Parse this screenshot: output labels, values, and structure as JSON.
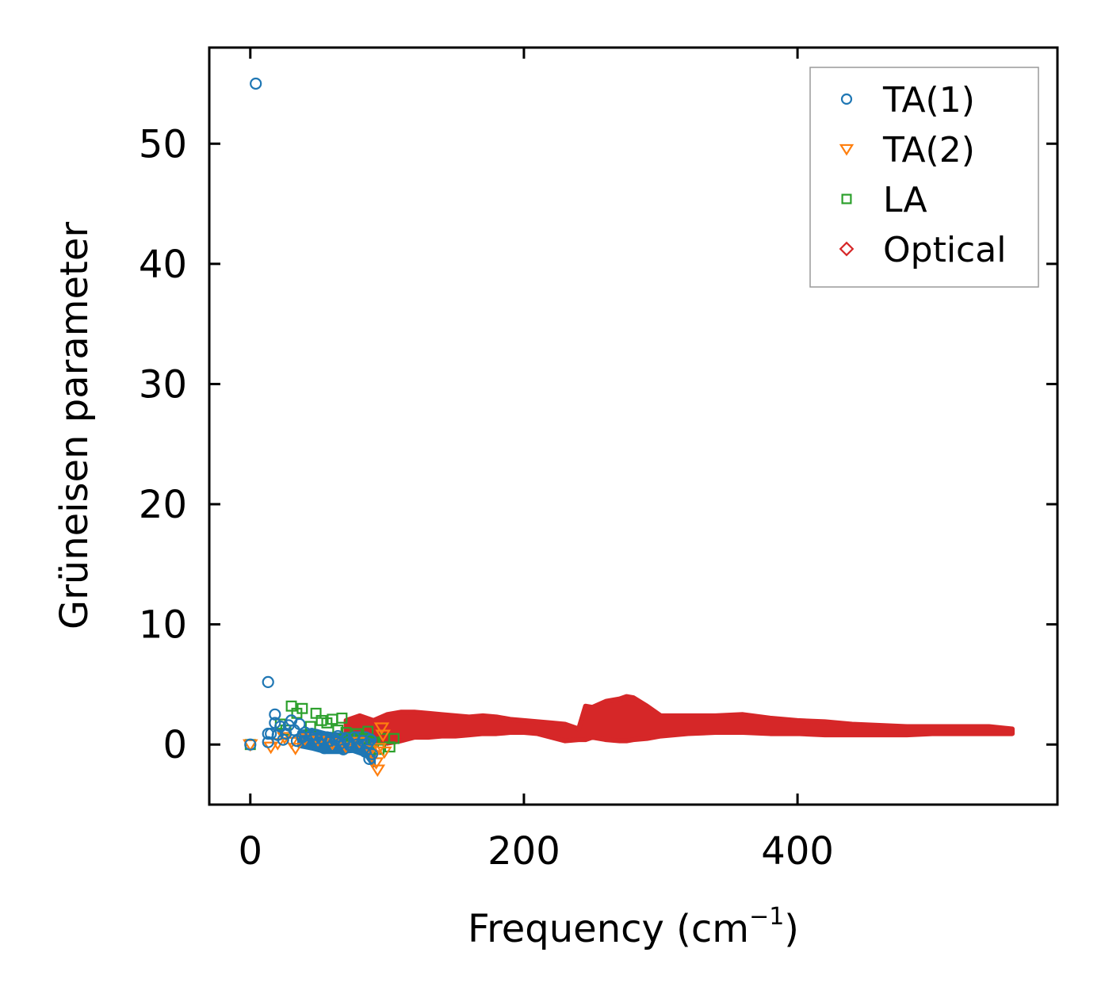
{
  "chart_data": {
    "type": "scatter",
    "xlabel": "Frequency (cm",
    "xlabel_sup": "−1",
    "xlabel_close": ")",
    "ylabel": "Grüneisen parameter",
    "xlim": [
      -30,
      590
    ],
    "ylim": [
      -5,
      58
    ],
    "xticks": [
      0,
      200,
      400
    ],
    "yticks": [
      0,
      10,
      20,
      30,
      40,
      50
    ],
    "xtick_labels": [
      "0",
      "200",
      "400"
    ],
    "ytick_labels": [
      "0",
      "10",
      "20",
      "30",
      "40",
      "50"
    ],
    "legend_position": "top-right",
    "series": [
      {
        "name": "TA(1)",
        "marker": "circle",
        "color": "#1f77b4",
        "points": [
          [
            4,
            55.0
          ],
          [
            13,
            5.2
          ],
          [
            0,
            0.0
          ],
          [
            13,
            0.9
          ],
          [
            13,
            0.2
          ],
          [
            15,
            0.9
          ],
          [
            18,
            2.5
          ],
          [
            18,
            1.8
          ],
          [
            20,
            0.8
          ],
          [
            22,
            1.5
          ],
          [
            24,
            0.4
          ],
          [
            26,
            0.9
          ],
          [
            28,
            1.6
          ],
          [
            30,
            2.0
          ],
          [
            32,
            1.2
          ],
          [
            34,
            0.3
          ],
          [
            36,
            1.7
          ],
          [
            38,
            0.6
          ],
          [
            40,
            1.0
          ],
          [
            42,
            0.1
          ],
          [
            44,
            0.7
          ],
          [
            46,
            0.4
          ],
          [
            48,
            0.8
          ],
          [
            50,
            0.2
          ],
          [
            52,
            0.5
          ],
          [
            54,
            -0.3
          ],
          [
            56,
            0.6
          ],
          [
            58,
            0.3
          ],
          [
            60,
            -0.1
          ],
          [
            62,
            0.4
          ],
          [
            64,
            0.7
          ],
          [
            66,
            0.1
          ],
          [
            68,
            -0.4
          ],
          [
            70,
            0.5
          ],
          [
            72,
            0.2
          ],
          [
            74,
            -0.2
          ],
          [
            76,
            0.6
          ],
          [
            78,
            0.0
          ],
          [
            80,
            -0.3
          ],
          [
            82,
            0.3
          ],
          [
            84,
            -0.6
          ],
          [
            86,
            0.1
          ],
          [
            87,
            -1.2
          ],
          [
            88,
            0.4
          ],
          [
            89,
            -0.8
          ]
        ]
      },
      {
        "name": "TA(2)",
        "marker": "triangle-down",
        "color": "#ff7f0e",
        "points": [
          [
            0,
            0.0
          ],
          [
            15,
            -0.2
          ],
          [
            20,
            0.1
          ],
          [
            25,
            0.6
          ],
          [
            30,
            0.2
          ],
          [
            33,
            -0.3
          ],
          [
            40,
            0.5
          ],
          [
            50,
            0.3
          ],
          [
            60,
            0.1
          ],
          [
            70,
            -0.2
          ],
          [
            80,
            0.2
          ],
          [
            88,
            -0.5
          ],
          [
            90,
            -0.9
          ],
          [
            92,
            -1.5
          ],
          [
            93,
            -2.1
          ],
          [
            94,
            -0.3
          ],
          [
            96,
            1.4
          ],
          [
            97,
            0.8
          ],
          [
            98,
            -0.6
          ]
        ]
      },
      {
        "name": "LA",
        "marker": "square",
        "color": "#2ca02c",
        "points": [
          [
            0,
            0.0
          ],
          [
            22,
            1.7
          ],
          [
            26,
            1.2
          ],
          [
            30,
            3.2
          ],
          [
            34,
            2.6
          ],
          [
            38,
            3.0
          ],
          [
            44,
            1.5
          ],
          [
            48,
            2.6
          ],
          [
            52,
            2.0
          ],
          [
            56,
            1.8
          ],
          [
            60,
            2.1
          ],
          [
            64,
            1.2
          ],
          [
            67,
            2.2
          ],
          [
            70,
            1.0
          ],
          [
            74,
            0.6
          ],
          [
            78,
            0.9
          ],
          [
            82,
            0.5
          ],
          [
            86,
            1.1
          ],
          [
            90,
            0.2
          ],
          [
            94,
            -0.4
          ],
          [
            98,
            0.5
          ],
          [
            102,
            -0.2
          ],
          [
            105,
            0.5
          ]
        ]
      },
      {
        "name": "Optical",
        "marker": "diamond",
        "color": "#d62728",
        "points": [
          [
            70,
            1.6
          ],
          [
            80,
            1.8
          ],
          [
            90,
            1.2
          ],
          [
            100,
            1.7
          ],
          [
            110,
            2.0
          ],
          [
            115,
            2.6
          ],
          [
            120,
            1.5
          ],
          [
            130,
            2.0
          ],
          [
            140,
            1.8
          ],
          [
            150,
            1.7
          ],
          [
            160,
            1.9
          ],
          [
            170,
            1.8
          ],
          [
            180,
            1.6
          ],
          [
            190,
            1.7
          ],
          [
            200,
            1.8
          ],
          [
            210,
            1.4
          ],
          [
            220,
            1.7
          ],
          [
            230,
            1.3
          ],
          [
            240,
            0.8
          ],
          [
            245,
            3.0
          ],
          [
            250,
            2.7
          ],
          [
            255,
            3.4
          ],
          [
            260,
            2.9
          ],
          [
            265,
            3.6
          ],
          [
            270,
            3.0
          ],
          [
            275,
            4.0
          ],
          [
            280,
            3.6
          ],
          [
            285,
            3.1
          ],
          [
            290,
            3.0
          ],
          [
            300,
            2.2
          ],
          [
            310,
            2.0
          ],
          [
            320,
            2.1
          ],
          [
            330,
            2.2
          ],
          [
            340,
            2.0
          ],
          [
            350,
            2.4
          ],
          [
            360,
            2.2
          ],
          [
            370,
            1.9
          ],
          [
            380,
            1.8
          ],
          [
            390,
            1.9
          ],
          [
            400,
            1.7
          ],
          [
            410,
            1.8
          ],
          [
            420,
            1.6
          ],
          [
            430,
            1.3
          ],
          [
            440,
            1.4
          ],
          [
            450,
            1.3
          ],
          [
            460,
            1.4
          ],
          [
            470,
            1.2
          ],
          [
            480,
            1.3
          ],
          [
            490,
            1.2
          ],
          [
            500,
            1.3
          ],
          [
            510,
            1.2
          ],
          [
            520,
            1.2
          ],
          [
            530,
            1.2
          ],
          [
            540,
            1.2
          ],
          [
            550,
            1.2
          ],
          [
            557,
            1.1
          ]
        ]
      }
    ],
    "optical_band": {
      "name": "Optical",
      "color": "#d62728",
      "x": [
        70,
        80,
        90,
        100,
        110,
        120,
        130,
        140,
        150,
        160,
        170,
        180,
        190,
        200,
        210,
        220,
        230,
        240,
        245,
        250,
        260,
        270,
        275,
        280,
        290,
        300,
        320,
        340,
        360,
        380,
        400,
        420,
        440,
        460,
        480,
        500,
        520,
        540,
        557
      ],
      "upper": [
        2.0,
        2.4,
        2.0,
        2.5,
        2.7,
        2.7,
        2.6,
        2.5,
        2.4,
        2.3,
        2.4,
        2.3,
        2.1,
        2.0,
        1.9,
        1.8,
        1.7,
        1.3,
        3.2,
        3.1,
        3.6,
        3.8,
        4.0,
        3.9,
        3.2,
        2.4,
        2.4,
        2.4,
        2.5,
        2.2,
        2.0,
        1.9,
        1.7,
        1.6,
        1.5,
        1.5,
        1.5,
        1.5,
        1.3
      ],
      "lower": [
        1.0,
        0.5,
        0.2,
        0.1,
        0.3,
        0.6,
        0.6,
        0.7,
        0.7,
        0.8,
        0.9,
        0.9,
        1.0,
        1.0,
        0.9,
        0.6,
        0.3,
        0.4,
        0.4,
        0.6,
        0.4,
        0.3,
        0.3,
        0.4,
        0.5,
        0.7,
        0.9,
        1.0,
        1.0,
        0.9,
        0.9,
        0.8,
        0.8,
        0.8,
        0.8,
        0.9,
        0.9,
        0.9,
        0.9
      ]
    },
    "ta1_band": {
      "name": "TA(1)",
      "color": "#1f77b4",
      "x": [
        36,
        45,
        55,
        65,
        75,
        85,
        90
      ],
      "upper": [
        1.0,
        1.2,
        0.9,
        0.8,
        0.9,
        0.9,
        0.6
      ],
      "lower": [
        -0.1,
        -0.3,
        -0.6,
        -0.6,
        -0.5,
        -0.9,
        -1.7
      ]
    }
  }
}
